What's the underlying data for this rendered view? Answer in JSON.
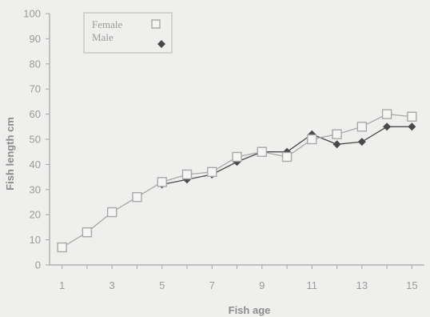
{
  "chart_data": {
    "type": "line",
    "title": "",
    "xlabel": "Fish age",
    "ylabel": "Fish length cm",
    "xlim": [
      0.5,
      15.5
    ],
    "ylim": [
      0,
      100
    ],
    "xticks": [
      1,
      3,
      5,
      7,
      9,
      11,
      13,
      15
    ],
    "yticks": [
      0,
      10,
      20,
      30,
      40,
      50,
      60,
      70,
      80,
      90,
      100
    ],
    "grid": false,
    "legend_position": "top-left",
    "series": [
      {
        "name": "Female",
        "marker": "open-square",
        "color": "#a8a8a8",
        "points": [
          [
            1,
            7
          ],
          [
            2,
            13
          ],
          [
            3,
            21
          ],
          [
            4,
            27
          ],
          [
            5,
            33
          ],
          [
            6,
            36
          ],
          [
            7,
            37
          ],
          [
            8,
            43
          ],
          [
            9,
            45
          ],
          [
            10,
            43
          ],
          [
            11,
            50
          ],
          [
            12,
            52
          ],
          [
            13,
            55
          ],
          [
            14,
            60
          ],
          [
            15,
            59
          ]
        ]
      },
      {
        "name": "Male",
        "marker": "filled-diamond",
        "color": "#4a4a4a",
        "points": [
          [
            5,
            32
          ],
          [
            6,
            34
          ],
          [
            7,
            36
          ],
          [
            8,
            41
          ],
          [
            9,
            45
          ],
          [
            10,
            45
          ],
          [
            11,
            52
          ],
          [
            12,
            48
          ],
          [
            13,
            49
          ],
          [
            14,
            55
          ],
          [
            15,
            55
          ]
        ]
      }
    ]
  }
}
